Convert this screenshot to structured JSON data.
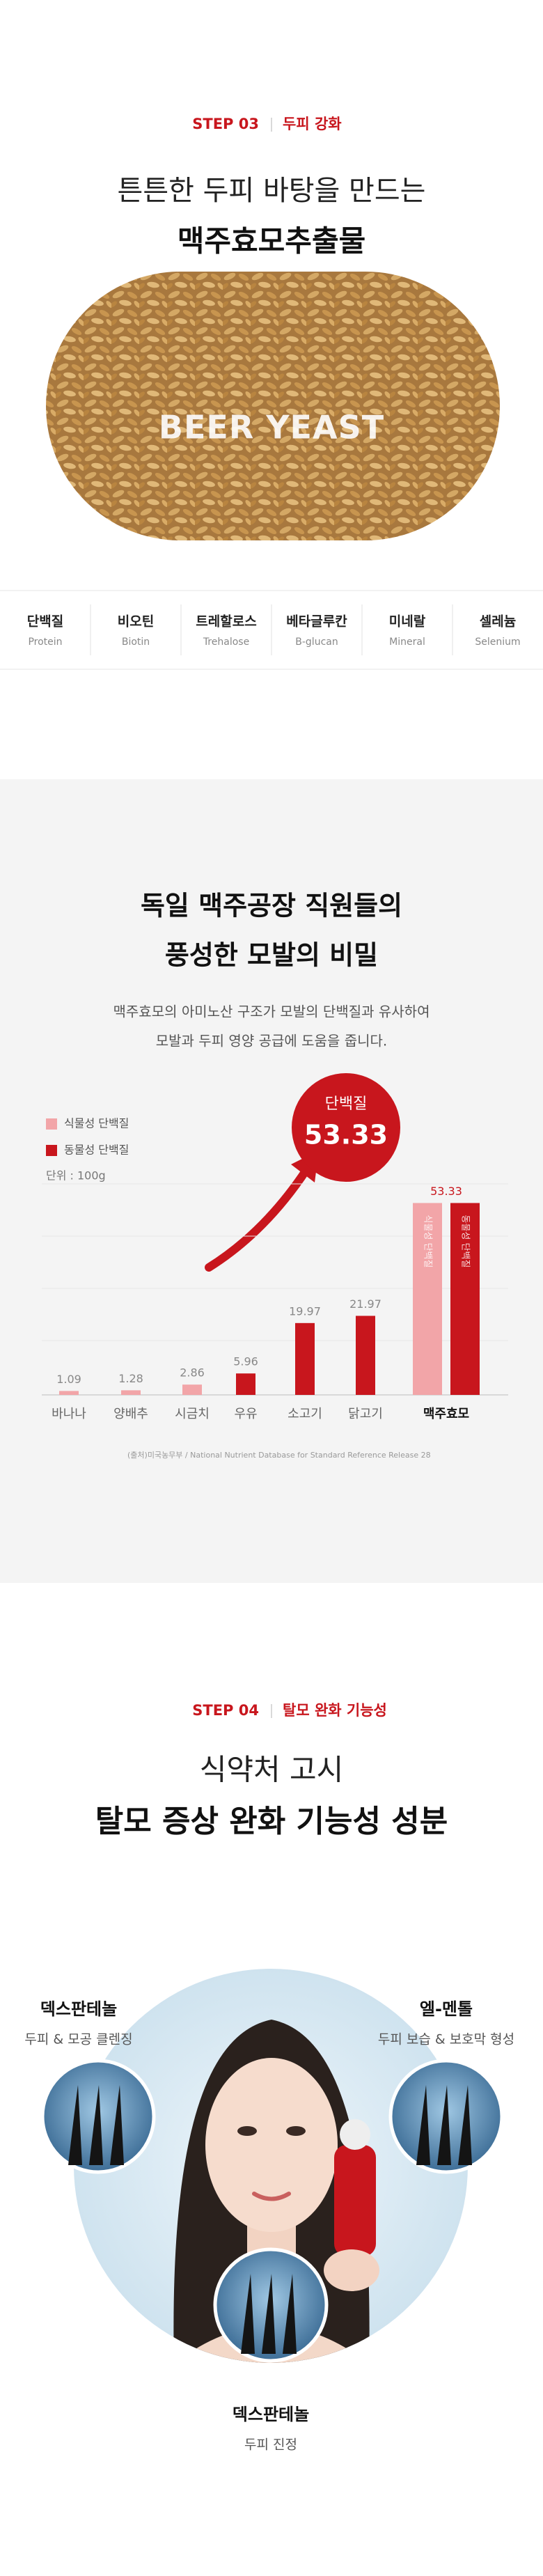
{
  "step03": {
    "step": "STEP 03",
    "label": "두피 강화",
    "headline": "튼튼한 두피 바탕을 만드는",
    "headline_bold": "맥주효모추출물",
    "image_text": "BEER YEAST"
  },
  "ingredients": [
    {
      "ko": "단백질",
      "en": "Protein"
    },
    {
      "ko": "비오틴",
      "en": "Biotin"
    },
    {
      "ko": "트레할로스",
      "en": "Trehalose"
    },
    {
      "ko": "베타글루칸",
      "en": "B-glucan"
    },
    {
      "ko": "미네랄",
      "en": "Mineral"
    },
    {
      "ko": "셀레늄",
      "en": "Selenium"
    }
  ],
  "protein_section": {
    "headline": [
      "독일 맥주공장 직원들의",
      "풍성한 모발의 비밀"
    ],
    "description": [
      "맥주효모의 아미노산 구조가 모발의 단백질과 유사하여",
      "모발과 두피 영양 공급에 도움을 줍니다."
    ]
  },
  "chart_data": {
    "type": "bar",
    "categories": [
      "바나나",
      "양배추",
      "시금치",
      "우유",
      "소고기",
      "닭고기",
      "맥주효모"
    ],
    "series": [
      {
        "name": "식물성 단백질",
        "color": "#f2a5a8",
        "values": [
          1.09,
          1.28,
          2.86,
          null,
          null,
          null,
          53.33
        ]
      },
      {
        "name": "동물성 단백질",
        "color": "#c8161d",
        "values": [
          null,
          null,
          null,
          5.96,
          19.97,
          21.97,
          53.33
        ]
      }
    ],
    "unit": "단위 : 100g",
    "callout": {
      "label": "단백질",
      "value": 53.33
    },
    "source": "(출처)미국농무부 / National Nutrient Database for Standard Reference Release 28",
    "ylim": [
      0,
      60
    ]
  },
  "step04": {
    "step": "STEP 04",
    "label": "탈모 완화 기능성",
    "headline": "식약처 고시",
    "headline_bold": "탈모 증상 완화 기능성 성분",
    "ingredients": [
      {
        "name": "덱스판테놀",
        "effect": "두피 & 모공 클렌징"
      },
      {
        "name": "엘-멘톨",
        "effect": "두피 보습 & 보호막 형성"
      },
      {
        "name": "덱스판테놀",
        "effect": "두피 진정"
      }
    ]
  }
}
